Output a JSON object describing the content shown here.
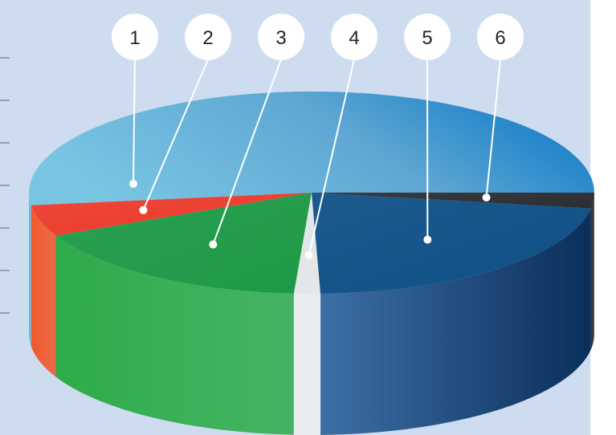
{
  "chart_data": {
    "type": "pie",
    "title": "",
    "style": "3d-cylinder",
    "slices": [
      {
        "label": "1",
        "value": 52.0,
        "color": "#6fc0e2",
        "side_color": "#61bde0"
      },
      {
        "label": "2",
        "value": 5.0,
        "color": "#ee3a2a",
        "side_color": "#f0582b"
      },
      {
        "label": "3",
        "value": 17.0,
        "color": "#1d9a45",
        "side_color": "#2eac4a"
      },
      {
        "label": "4",
        "value": 1.5,
        "color": "#e4e6e8",
        "side_color": "#eceef0"
      },
      {
        "label": "5",
        "value": 22.0,
        "color": "#0d4f86",
        "side_color": "#113f6e"
      },
      {
        "label": "6",
        "value": 2.5,
        "color": "#2b2d30",
        "side_color": "#2a2b2d"
      }
    ],
    "legend": "none",
    "grid": false
  },
  "colors": {
    "background_panel": "#cddcef",
    "tick_marks": "#5d7f9c",
    "callout_circle": "#ffffff",
    "callout_line": "#ffffff"
  }
}
